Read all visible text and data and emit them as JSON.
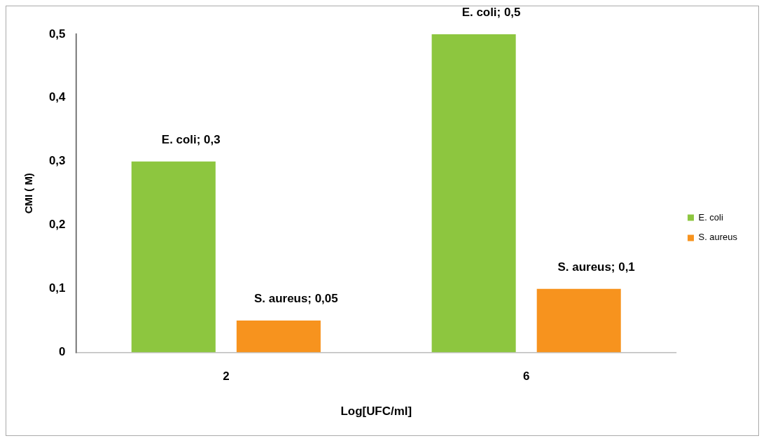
{
  "chart_data": {
    "type": "bar",
    "xlabel": "Log[UFC/ml]",
    "ylabel": "CMI ( M)",
    "categories": [
      "2",
      "6"
    ],
    "series": [
      {
        "name": "E. coli",
        "color": "#8dc63f",
        "values": [
          0.3,
          0.5
        ],
        "value_labels": [
          "E. coli; 0,3",
          "E. coli; 0,5"
        ]
      },
      {
        "name": "S. aureus",
        "color": "#f7931e",
        "values": [
          0.05,
          0.1
        ],
        "value_labels": [
          "S. aureus; 0,05",
          "S. aureus; 0,1"
        ]
      }
    ],
    "ylim": [
      0,
      0.5
    ],
    "yticks": [
      {
        "value": 0,
        "label": "0"
      },
      {
        "value": 0.1,
        "label": "0,1"
      },
      {
        "value": 0.2,
        "label": "0,2"
      },
      {
        "value": 0.3,
        "label": "0,3"
      },
      {
        "value": 0.4,
        "label": "0,4"
      },
      {
        "value": 0.5,
        "label": "0,5"
      }
    ],
    "legend": "right"
  }
}
